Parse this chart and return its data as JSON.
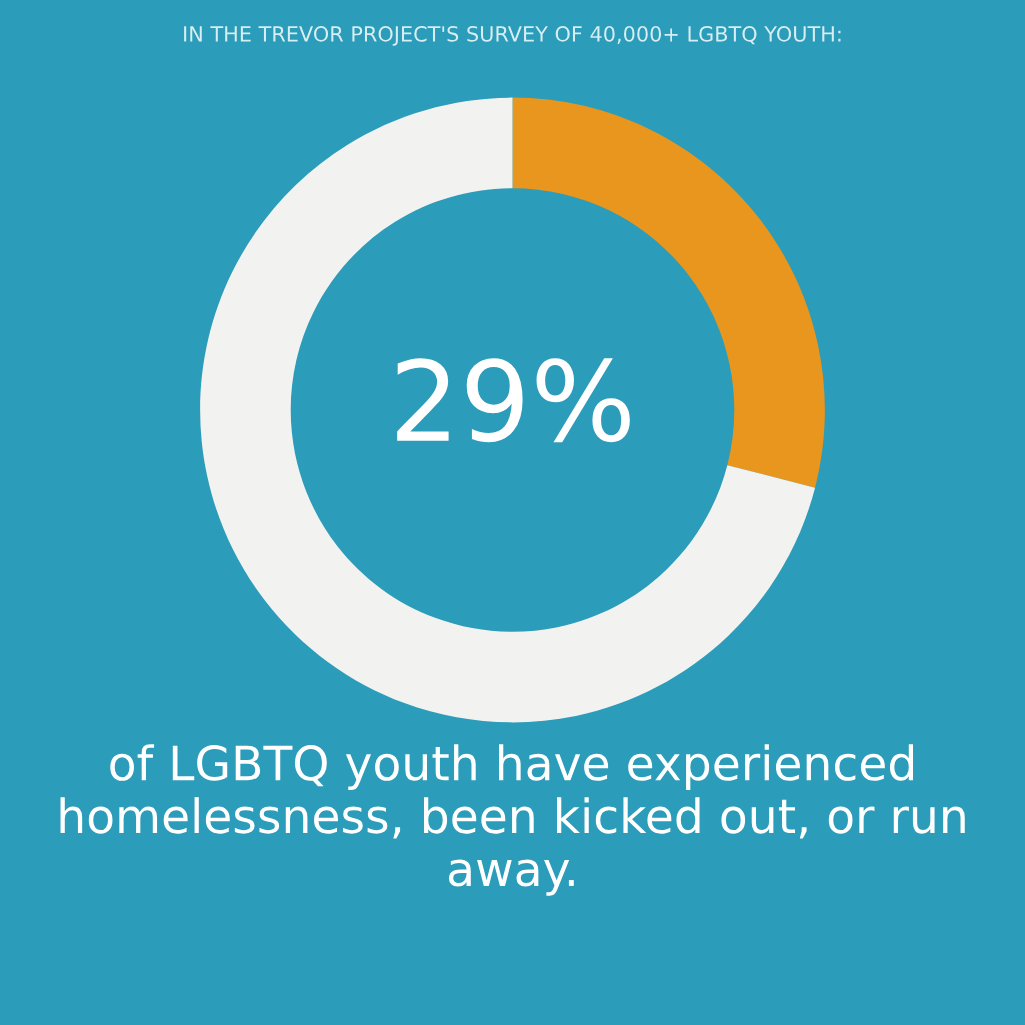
{
  "chart_data": {
    "type": "donut",
    "title": "IN THE TREVOR PROJECT'S SURVEY OF 40,000+ LGBTQ YOUTH:",
    "categories": [
      null,
      null
    ],
    "values": [
      29,
      71
    ],
    "colors": [
      "#e8961e",
      "#f2f2f0"
    ],
    "value_labels": [
      "29%",
      null
    ],
    "annotations": [
      "of LGBTQ youth have experienced homelessness, been kicked out, or run away."
    ]
  }
}
